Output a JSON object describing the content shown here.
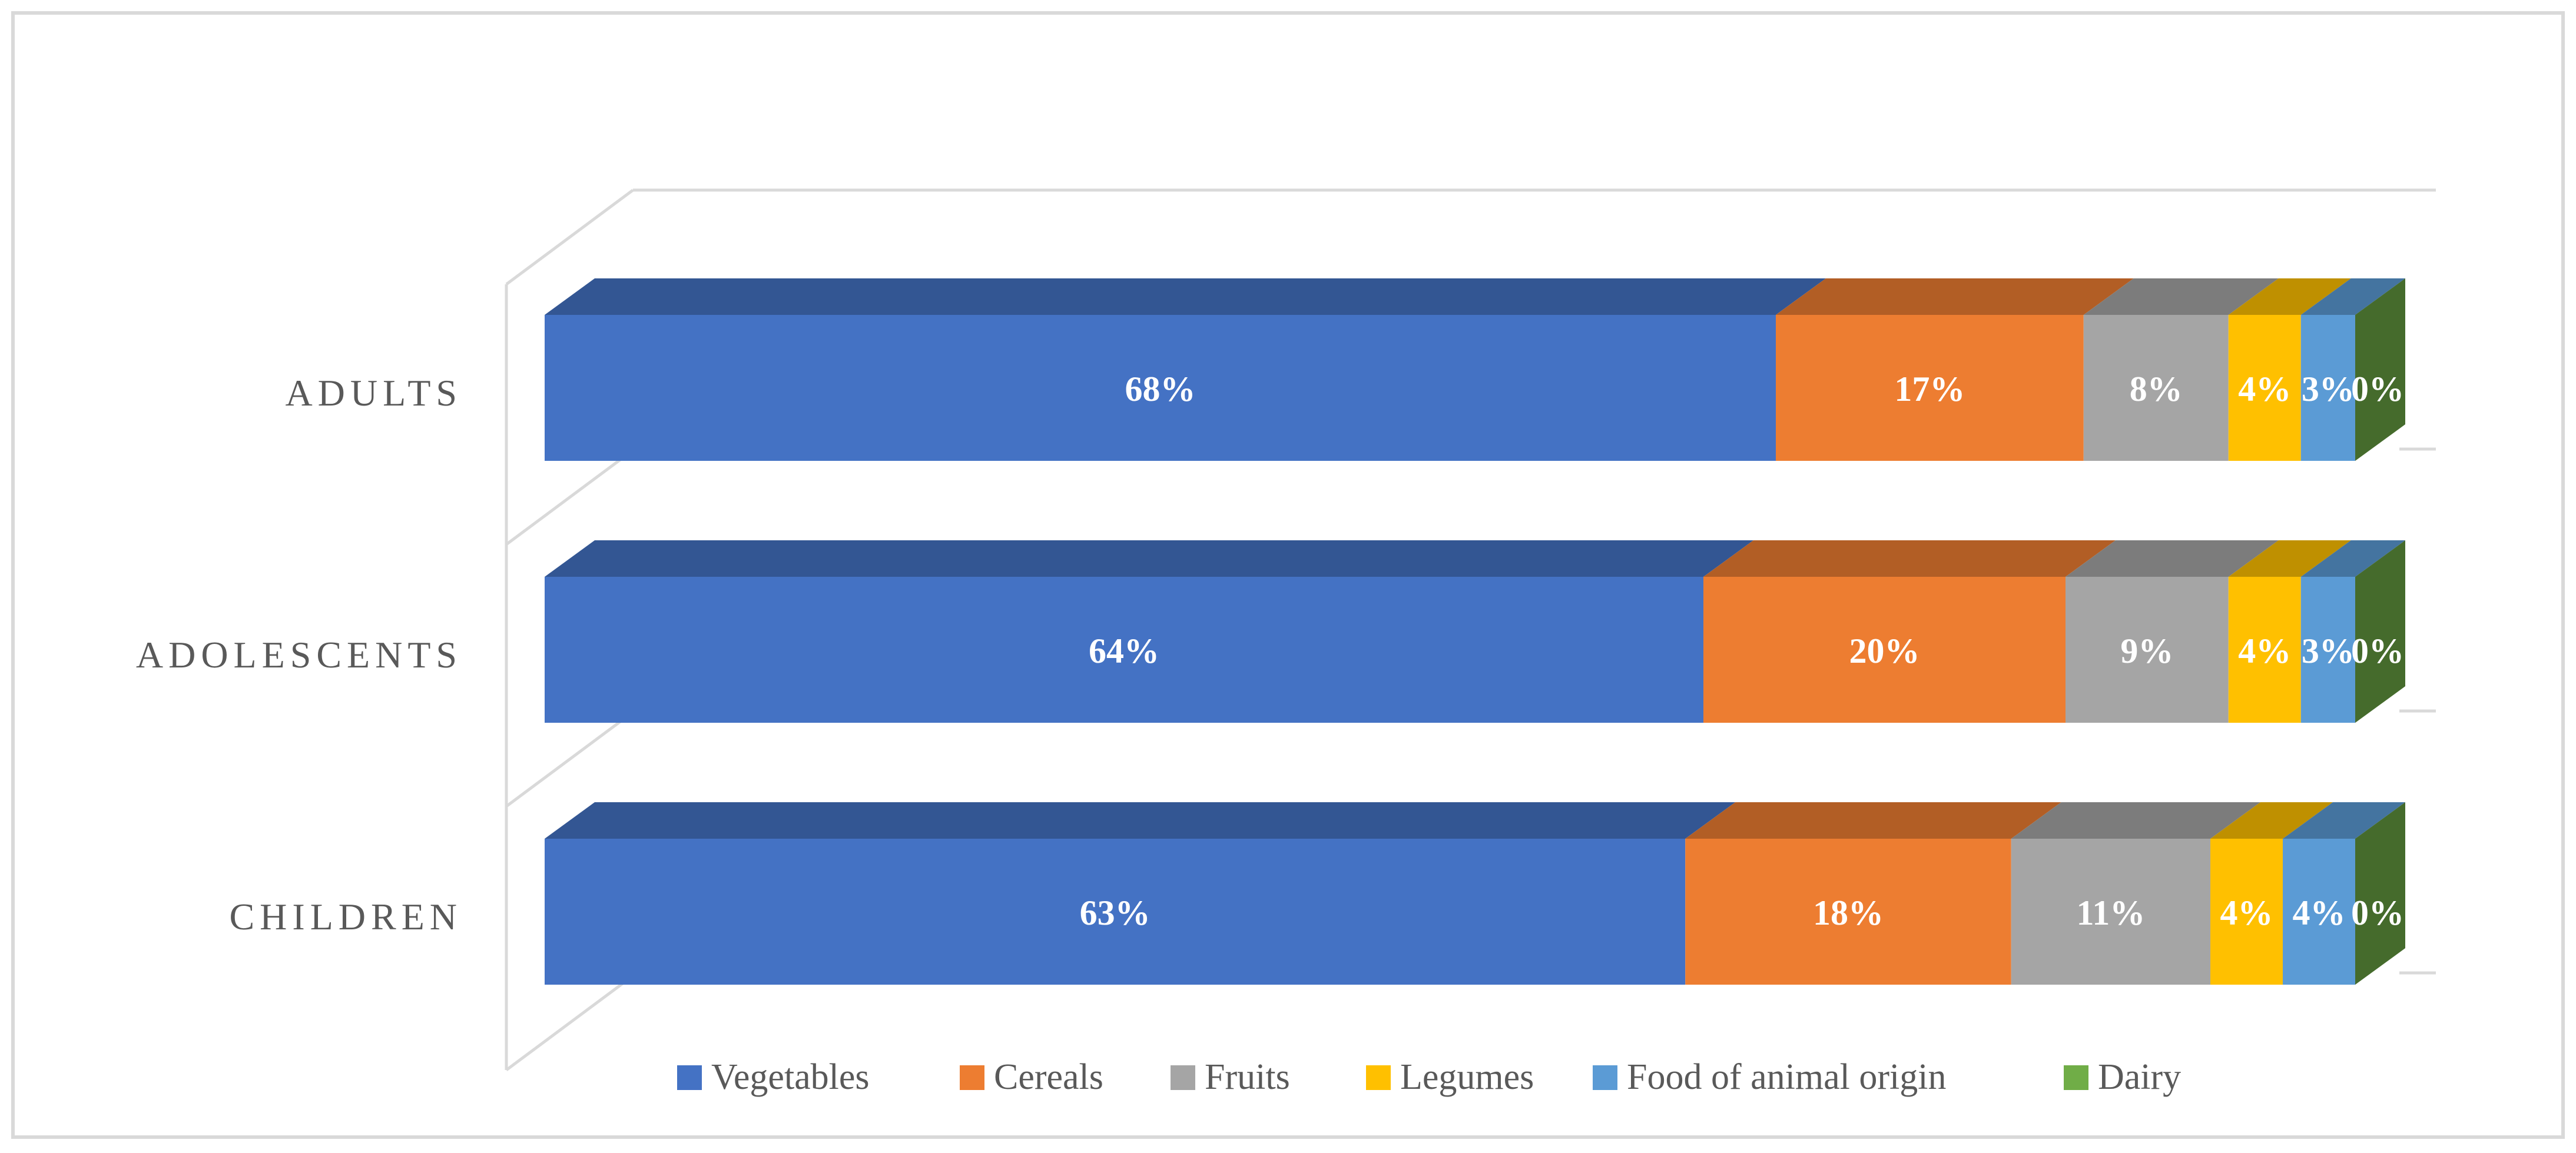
{
  "chart_data": {
    "type": "bar",
    "stacked": "percent",
    "orientation": "horizontal",
    "style": "3d",
    "grid": false,
    "legend_position": "bottom",
    "categories": [
      "ADULTS",
      "ADOLESCENTS",
      "CHILDREN"
    ],
    "series": [
      {
        "name": "Vegetables",
        "color": "#4472C4",
        "values": [
          68,
          64,
          63
        ],
        "labels": [
          "68%",
          "64%",
          "63%"
        ]
      },
      {
        "name": "Cereals",
        "color": "#ED7D31",
        "values": [
          17,
          20,
          18
        ],
        "labels": [
          "17%",
          "20%",
          "18%"
        ]
      },
      {
        "name": "Fruits",
        "color": "#A5A5A5",
        "values": [
          8,
          9,
          11
        ],
        "labels": [
          "8%",
          "9%",
          "11%"
        ]
      },
      {
        "name": "Legumes",
        "color": "#FFC000",
        "values": [
          4,
          4,
          4
        ],
        "labels": [
          "4%",
          "4%",
          "4%"
        ]
      },
      {
        "name": "Food of animal origin",
        "color": "#5B9BD5",
        "values": [
          3,
          3,
          4
        ],
        "labels": [
          "3%",
          "3%",
          "4%"
        ]
      },
      {
        "name": "Dairy",
        "color": "#70AD47",
        "values": [
          0,
          0,
          0
        ],
        "labels": [
          "0%",
          "0%",
          "0%"
        ]
      }
    ]
  }
}
